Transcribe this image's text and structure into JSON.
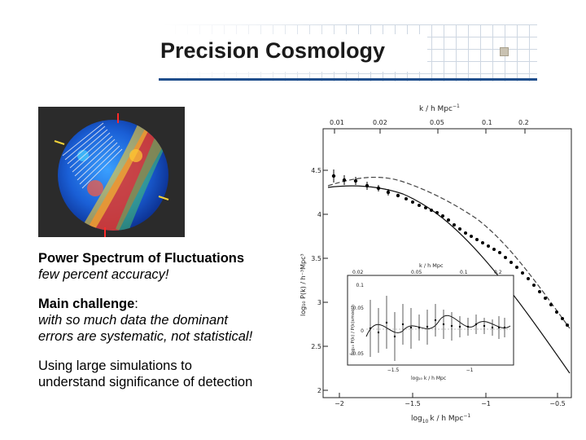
{
  "slide": {
    "title": "Precision Cosmology"
  },
  "text": {
    "p1_bold": "Power Spectrum of Fluctuations",
    "p1_italic": "few percent accuracy!",
    "p2_bold": "Main challenge",
    "p2_colon": ":",
    "p2_italic_1": "with so much data the dominant",
    "p2_italic_2": "errors are systematic, not statistical!",
    "p3_line1": "Using large simulations to",
    "p3_line2": "understand significance of detection"
  },
  "figure": {
    "top_axis_label": "k / h Mpc",
    "top_axis_exp": "−1",
    "top_ticks": [
      "0.01",
      "0.02",
      "0.05",
      "0.1",
      "0.2"
    ],
    "bottom_axis_label": "log",
    "bottom_axis_label_rest": "k / h Mpc",
    "bottom_ticks": [
      "−2",
      "−1.5",
      "−1",
      "−0.5"
    ],
    "y_axis_label": "log₁₀ P(k) / h⁻³Mpc³",
    "y_ticks": [
      "2",
      "2.5",
      "3",
      "3.5",
      "4",
      "4.5"
    ],
    "inset": {
      "top_label": "k / h Mpc",
      "top_ticks": [
        "0.02",
        "0.05",
        "0.1",
        "0.2"
      ],
      "bottom_label": "log₁₀ k / h Mpc",
      "bottom_ticks": [
        "−1.5",
        "−1"
      ],
      "y_label": "log₁₀ P(k) / P(k)smooth",
      "y_ticks": [
        "0.1",
        "0.05",
        "0",
        "−0.05"
      ]
    }
  },
  "colors": {
    "accent": "#1f4e8c",
    "grid": "#c9d3df"
  }
}
